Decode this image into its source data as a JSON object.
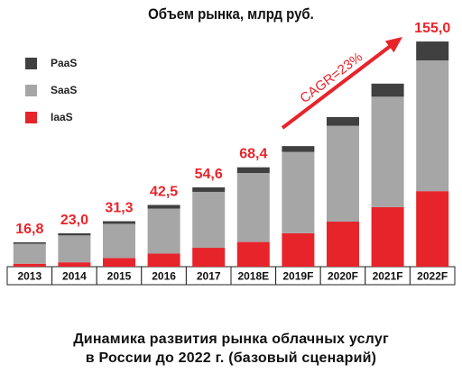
{
  "title": "Объем рынка, млрд руб.",
  "caption": {
    "line1": "Динамика развития рынка облачных услуг",
    "line2": "в России до 2022 г. (базовый сценарий)"
  },
  "colors": {
    "paas": "#404040",
    "saas": "#a6a6a6",
    "iaas": "#e8242b",
    "total_label": "#e8242b",
    "arrow": "#e8242b"
  },
  "cagr_label": "CAGR=23%",
  "chart_data": {
    "type": "bar",
    "stacked": true,
    "title": "Объем рынка, млрд руб.",
    "categories": [
      "2013",
      "2014",
      "2015",
      "2016",
      "2017",
      "2018E",
      "2019F",
      "2020F",
      "2021F",
      "2022F"
    ],
    "series": [
      {
        "name": "IaaS",
        "values": [
          2.0,
          3.0,
          6.0,
          9.0,
          13.0,
          17.0,
          23.0,
          31.0,
          41.0,
          52.0
        ]
      },
      {
        "name": "SaaS",
        "values": [
          13.8,
          18.5,
          23.5,
          31.0,
          38.5,
          47.5,
          56.0,
          66.0,
          76.0,
          90.0
        ]
      },
      {
        "name": "PaaS",
        "values": [
          1.0,
          1.5,
          1.8,
          2.5,
          3.1,
          3.9,
          4.0,
          6.0,
          9.0,
          13.0
        ]
      }
    ],
    "totals_labels": [
      "16,8",
      "23,0",
      "31,3",
      "42,5",
      "54,6",
      "68,4",
      "",
      "",
      "",
      "155,0"
    ],
    "legend": [
      "PaaS",
      "SaaS",
      "IaaS"
    ],
    "legend_position": "top-left",
    "ylim": [
      0,
      160
    ],
    "grid": false,
    "annotations": [
      "CAGR=23%"
    ]
  }
}
